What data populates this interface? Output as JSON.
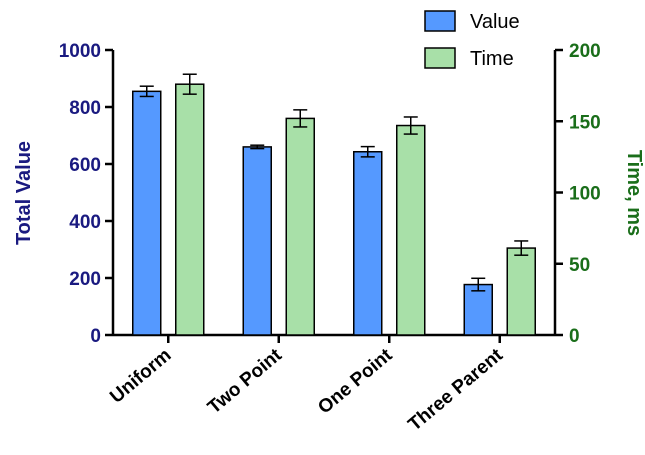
{
  "chart_data": {
    "type": "bar",
    "categories": [
      "Uniform",
      "Two Point",
      "One Point",
      "Three Parent"
    ],
    "series": [
      {
        "name": "Value",
        "axis": "left",
        "color": "#5599ff",
        "values": [
          855,
          660,
          643,
          177
        ],
        "errors": [
          18,
          6,
          18,
          22
        ]
      },
      {
        "name": "Time",
        "axis": "right",
        "color": "#a8e0a8",
        "values": [
          176,
          152,
          147,
          61
        ],
        "errors": [
          7,
          6,
          6,
          5
        ]
      }
    ],
    "ylabel": "Total Value",
    "y2label": "Time, ms",
    "ylim": [
      0,
      1000
    ],
    "y2lim": [
      0,
      200
    ],
    "yticks": [
      "0",
      "200",
      "400",
      "600",
      "800",
      "1000"
    ],
    "y2ticks": [
      "0",
      "50",
      "100",
      "150",
      "200"
    ],
    "left_axis_color": "#1a1a80",
    "right_axis_color": "#1a6e1a",
    "legend_position": "top-right",
    "grid": false
  }
}
